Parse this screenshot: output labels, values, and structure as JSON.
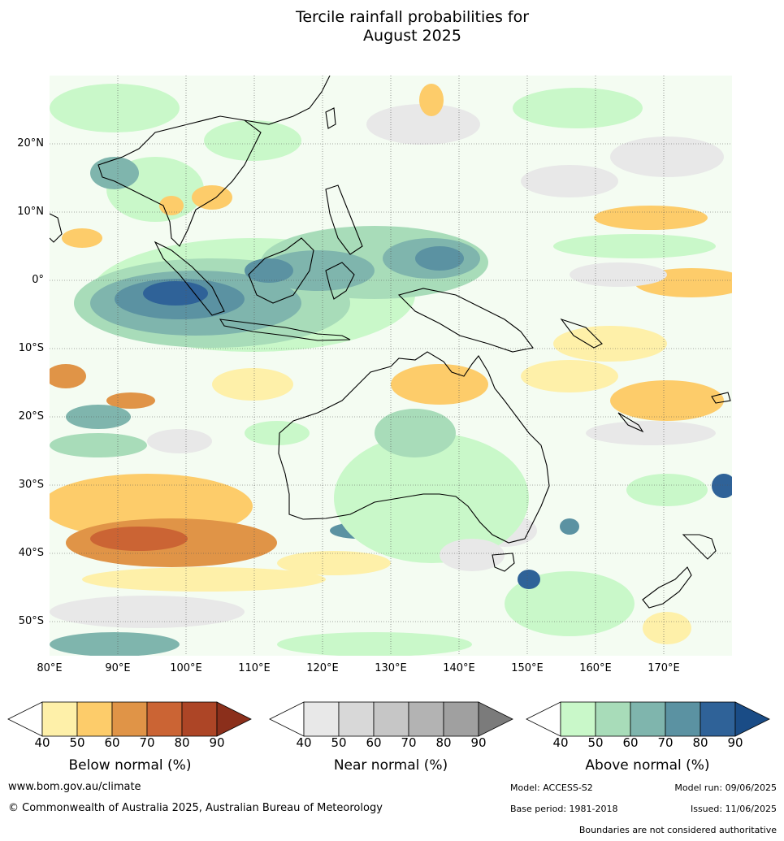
{
  "title_line1": "Tercile rainfall probabilities for",
  "title_line2": "August 2025",
  "lat_labels": [
    "20°N",
    "10°N",
    "0°",
    "10°S",
    "20°S",
    "30°S",
    "40°S",
    "50°S"
  ],
  "lon_labels": [
    "80°E",
    "90°E",
    "100°E",
    "110°E",
    "120°E",
    "130°E",
    "140°E",
    "150°E",
    "160°E",
    "170°E"
  ],
  "colorbars": [
    {
      "label": "Below normal (%)",
      "ticks": [
        "40",
        "50",
        "60",
        "70",
        "80",
        "90"
      ],
      "colors": [
        "#ffffff",
        "#fef0a9",
        "#fdcc6a",
        "#e09447",
        "#cb6434",
        "#ad4526",
        "#8b2f1b"
      ]
    },
    {
      "label": "Near normal (%)",
      "ticks": [
        "40",
        "50",
        "60",
        "70",
        "80",
        "90"
      ],
      "colors": [
        "#ffffff",
        "#e8e8e8",
        "#d8d8d8",
        "#c6c6c6",
        "#b3b3b3",
        "#a0a0a0",
        "#7b7b7b"
      ]
    },
    {
      "label": "Above normal (%)",
      "ticks": [
        "40",
        "50",
        "60",
        "70",
        "80",
        "90"
      ],
      "colors": [
        "#ffffff",
        "#c9f8c9",
        "#a8dcb9",
        "#7fb5ad",
        "#5b92a2",
        "#2f6298",
        "#1a4c86"
      ]
    }
  ],
  "footer": {
    "website": "www.bom.gov.au/climate",
    "copyright": "© Commonwealth of Australia 2025, Australian Bureau of Meteorology",
    "model": "Model: ACCESS-S2",
    "model_run": "Model run: 09/06/2025",
    "base_period": "Base period: 1981-2018",
    "issued": "Issued: 11/06/2025",
    "disclaimer": "Boundaries are not considered authoritative"
  }
}
